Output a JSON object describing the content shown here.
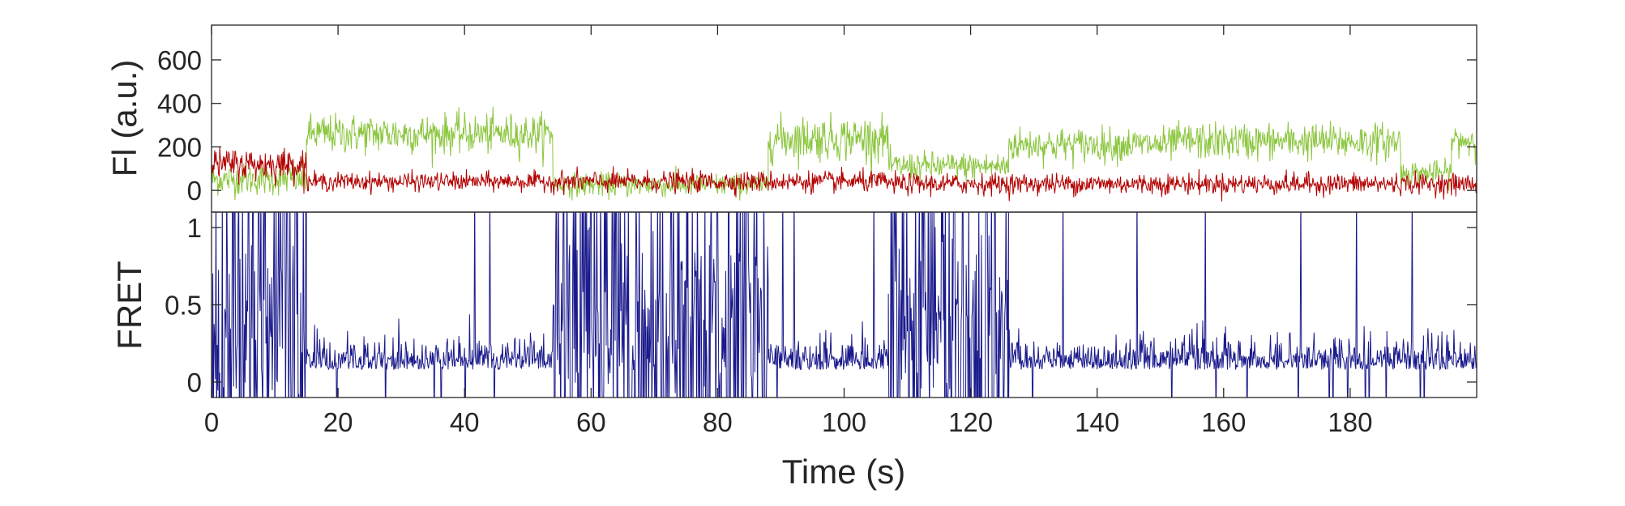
{
  "chart_data": [
    {
      "type": "line",
      "ylabel": "Fl (a.u.)",
      "xlim": [
        0,
        200
      ],
      "ylim": [
        -100,
        760
      ],
      "yticks": [
        0,
        200,
        400,
        600
      ],
      "yticklabels": [
        "0",
        "200",
        "400",
        "600"
      ],
      "grid": false,
      "series": [
        {
          "color": "#8cc63f",
          "segments": [
            {
              "x": [
                0,
                15
              ],
              "mean": 50,
              "noise": 60
            },
            {
              "x": [
                15,
                54
              ],
              "mean": 260,
              "noise": 75
            },
            {
              "x": [
                54,
                88
              ],
              "mean": 25,
              "noise": 45
            },
            {
              "x": [
                88,
                107
              ],
              "mean": 240,
              "noise": 85
            },
            {
              "x": [
                107,
                126
              ],
              "mean": 110,
              "noise": 55
            },
            {
              "x": [
                126,
                152
              ],
              "mean": 210,
              "noise": 65
            },
            {
              "x": [
                152,
                188
              ],
              "mean": 225,
              "noise": 70
            },
            {
              "x": [
                188,
                196
              ],
              "mean": 80,
              "noise": 45
            },
            {
              "x": [
                196,
                200
              ],
              "mean": 230,
              "noise": 60
            }
          ]
        },
        {
          "color": "#b30000",
          "segments": [
            {
              "x": [
                0,
                15
              ],
              "mean": 120,
              "noise": 60
            },
            {
              "x": [
                15,
                54
              ],
              "mean": 40,
              "noise": 35
            },
            {
              "x": [
                54,
                88
              ],
              "mean": 40,
              "noise": 40
            },
            {
              "x": [
                88,
                107
              ],
              "mean": 40,
              "noise": 40
            },
            {
              "x": [
                107,
                200
              ],
              "mean": 30,
              "noise": 40
            }
          ]
        }
      ]
    },
    {
      "type": "line",
      "xlabel": "Time (s)",
      "ylabel": "FRET",
      "xlim": [
        0,
        200
      ],
      "ylim": [
        -0.1,
        1.1
      ],
      "xticks": [
        0,
        20,
        40,
        60,
        80,
        100,
        120,
        140,
        160,
        180
      ],
      "xticklabels": [
        "0",
        "20",
        "40",
        "60",
        "80",
        "100",
        "120",
        "140",
        "160",
        "180"
      ],
      "yticks": [
        0,
        0.5,
        1
      ],
      "yticklabels": [
        "0",
        "0.5",
        "1"
      ],
      "grid": false,
      "series": [
        {
          "color": "#1a1a8c",
          "segments": [
            {
              "x": [
                0,
                15
              ],
              "mode": "flicker"
            },
            {
              "x": [
                15,
                54
              ],
              "mode": "low"
            },
            {
              "x": [
                54,
                88
              ],
              "mode": "flicker"
            },
            {
              "x": [
                88,
                107
              ],
              "mode": "low"
            },
            {
              "x": [
                107,
                126
              ],
              "mode": "flicker"
            },
            {
              "x": [
                126,
                200
              ],
              "mode": "low"
            }
          ]
        }
      ]
    }
  ]
}
